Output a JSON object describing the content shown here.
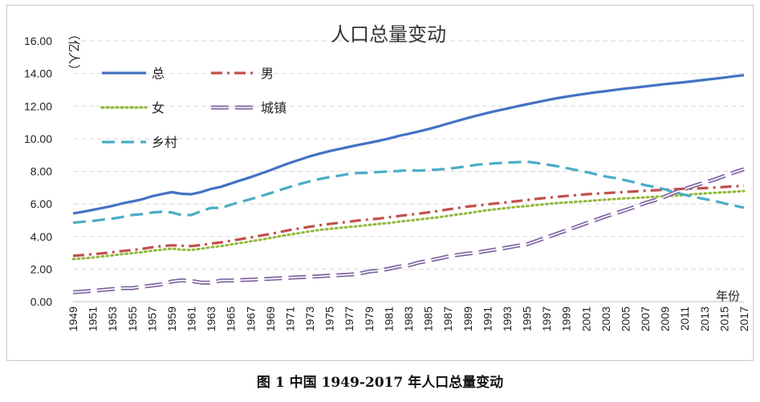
{
  "caption": "图 1  中国 1949-2017 年人口总量变动",
  "chart_data": {
    "type": "line",
    "title": "人口总量变动",
    "ylabel": "（亿人）",
    "xlabel": "年份",
    "ylim": [
      0,
      16
    ],
    "yticks": [
      "0.00",
      "2.00",
      "4.00",
      "6.00",
      "8.00",
      "10.00",
      "12.00",
      "14.00",
      "16.00"
    ],
    "grid": true,
    "legend_position": "top-left",
    "x": [
      1949,
      1950,
      1951,
      1952,
      1953,
      1954,
      1955,
      1956,
      1957,
      1958,
      1959,
      1960,
      1961,
      1962,
      1963,
      1964,
      1965,
      1966,
      1967,
      1968,
      1969,
      1970,
      1971,
      1972,
      1973,
      1974,
      1975,
      1976,
      1977,
      1978,
      1979,
      1980,
      1981,
      1982,
      1983,
      1984,
      1985,
      1986,
      1987,
      1988,
      1989,
      1990,
      1991,
      1992,
      1993,
      1994,
      1995,
      1996,
      1997,
      1998,
      1999,
      2000,
      2001,
      2002,
      2003,
      2004,
      2005,
      2006,
      2007,
      2008,
      2009,
      2010,
      2011,
      2012,
      2013,
      2014,
      2015,
      2016,
      2017
    ],
    "xtick_labels": [
      "1949",
      "1951",
      "1953",
      "1955",
      "1957",
      "1959",
      "1961",
      "1963",
      "1965",
      "1967",
      "1969",
      "1971",
      "1973",
      "1975",
      "1977",
      "1979",
      "1981",
      "1983",
      "1985",
      "1987",
      "1989",
      "1991",
      "1993",
      "1995",
      "1997",
      "1999",
      "2001",
      "2003",
      "2005",
      "2007",
      "2009",
      "2011",
      "2013",
      "2015",
      "2017"
    ],
    "series": [
      {
        "name": "总",
        "color": "#4472c4",
        "style": "solid",
        "values": [
          5.42,
          5.52,
          5.63,
          5.75,
          5.88,
          6.03,
          6.15,
          6.28,
          6.47,
          6.6,
          6.72,
          6.62,
          6.59,
          6.73,
          6.92,
          7.05,
          7.25,
          7.45,
          7.64,
          7.85,
          8.07,
          8.3,
          8.52,
          8.72,
          8.92,
          9.09,
          9.24,
          9.37,
          9.5,
          9.63,
          9.75,
          9.87,
          10.01,
          10.17,
          10.3,
          10.44,
          10.59,
          10.75,
          10.93,
          11.1,
          11.27,
          11.43,
          11.58,
          11.72,
          11.85,
          11.99,
          12.11,
          12.24,
          12.36,
          12.48,
          12.58,
          12.67,
          12.76,
          12.85,
          12.92,
          13.0,
          13.08,
          13.14,
          13.21,
          13.28,
          13.35,
          13.41,
          13.47,
          13.54,
          13.61,
          13.68,
          13.75,
          13.83,
          13.9
        ]
      },
      {
        "name": "男",
        "color": "#c0504d",
        "style": "dashdot",
        "values": [
          2.81,
          2.86,
          2.92,
          2.97,
          3.04,
          3.11,
          3.17,
          3.24,
          3.34,
          3.41,
          3.46,
          3.43,
          3.41,
          3.48,
          3.57,
          3.64,
          3.74,
          3.84,
          3.94,
          4.05,
          4.16,
          4.28,
          4.4,
          4.5,
          4.6,
          4.69,
          4.77,
          4.84,
          4.91,
          4.99,
          5.04,
          5.1,
          5.18,
          5.26,
          5.33,
          5.4,
          5.48,
          5.57,
          5.66,
          5.75,
          5.84,
          5.9,
          5.97,
          6.04,
          6.1,
          6.17,
          6.24,
          6.31,
          6.37,
          6.43,
          6.49,
          6.54,
          6.59,
          6.63,
          6.66,
          6.7,
          6.74,
          6.77,
          6.81,
          6.84,
          6.87,
          6.9,
          6.93,
          6.94,
          6.97,
          7.0,
          7.04,
          7.08,
          7.11
        ]
      },
      {
        "name": "女",
        "color": "#92b83a",
        "style": "dotted",
        "values": [
          2.61,
          2.66,
          2.71,
          2.78,
          2.84,
          2.92,
          2.98,
          3.04,
          3.13,
          3.19,
          3.26,
          3.19,
          3.18,
          3.25,
          3.35,
          3.41,
          3.51,
          3.61,
          3.7,
          3.8,
          3.91,
          4.02,
          4.12,
          4.22,
          4.32,
          4.4,
          4.47,
          4.53,
          4.59,
          4.64,
          4.71,
          4.77,
          4.83,
          4.91,
          4.97,
          5.04,
          5.11,
          5.18,
          5.27,
          5.35,
          5.43,
          5.53,
          5.61,
          5.68,
          5.75,
          5.82,
          5.87,
          5.93,
          5.99,
          6.05,
          6.09,
          6.13,
          6.17,
          6.22,
          6.26,
          6.3,
          6.34,
          6.37,
          6.4,
          6.44,
          6.48,
          6.51,
          6.54,
          6.6,
          6.64,
          6.68,
          6.71,
          6.75,
          6.79
        ]
      },
      {
        "name": "城镇",
        "color": "#8064a2",
        "style": "double",
        "values": [
          0.58,
          0.62,
          0.67,
          0.72,
          0.78,
          0.83,
          0.83,
          0.92,
          0.99,
          1.07,
          1.24,
          1.31,
          1.27,
          1.17,
          1.17,
          1.3,
          1.3,
          1.33,
          1.35,
          1.38,
          1.41,
          1.44,
          1.47,
          1.5,
          1.53,
          1.56,
          1.6,
          1.63,
          1.66,
          1.72,
          1.85,
          1.91,
          2.02,
          2.15,
          2.22,
          2.4,
          2.51,
          2.64,
          2.77,
          2.87,
          2.95,
          3.02,
          3.12,
          3.22,
          3.32,
          3.43,
          3.52,
          3.73,
          3.94,
          4.16,
          4.37,
          4.59,
          4.81,
          5.02,
          5.24,
          5.43,
          5.62,
          5.83,
          6.06,
          6.24,
          6.45,
          6.7,
          6.91,
          7.12,
          7.31,
          7.49,
          7.71,
          7.93,
          8.13
        ]
      },
      {
        "name": "乡村",
        "color": "#4bacc6",
        "style": "dashed",
        "values": [
          4.84,
          4.91,
          4.96,
          5.03,
          5.1,
          5.2,
          5.32,
          5.37,
          5.47,
          5.52,
          5.48,
          5.31,
          5.32,
          5.56,
          5.76,
          5.75,
          5.95,
          6.13,
          6.29,
          6.47,
          6.66,
          6.86,
          7.05,
          7.22,
          7.39,
          7.53,
          7.64,
          7.74,
          7.84,
          7.9,
          7.9,
          7.96,
          7.99,
          8.02,
          8.08,
          8.04,
          8.08,
          8.11,
          8.16,
          8.23,
          8.32,
          8.41,
          8.46,
          8.5,
          8.53,
          8.56,
          8.59,
          8.51,
          8.42,
          8.32,
          8.2,
          8.08,
          7.96,
          7.82,
          7.68,
          7.58,
          7.45,
          7.31,
          7.15,
          7.04,
          6.89,
          6.71,
          6.56,
          6.42,
          6.3,
          6.19,
          6.03,
          5.9,
          5.77
        ]
      }
    ]
  }
}
